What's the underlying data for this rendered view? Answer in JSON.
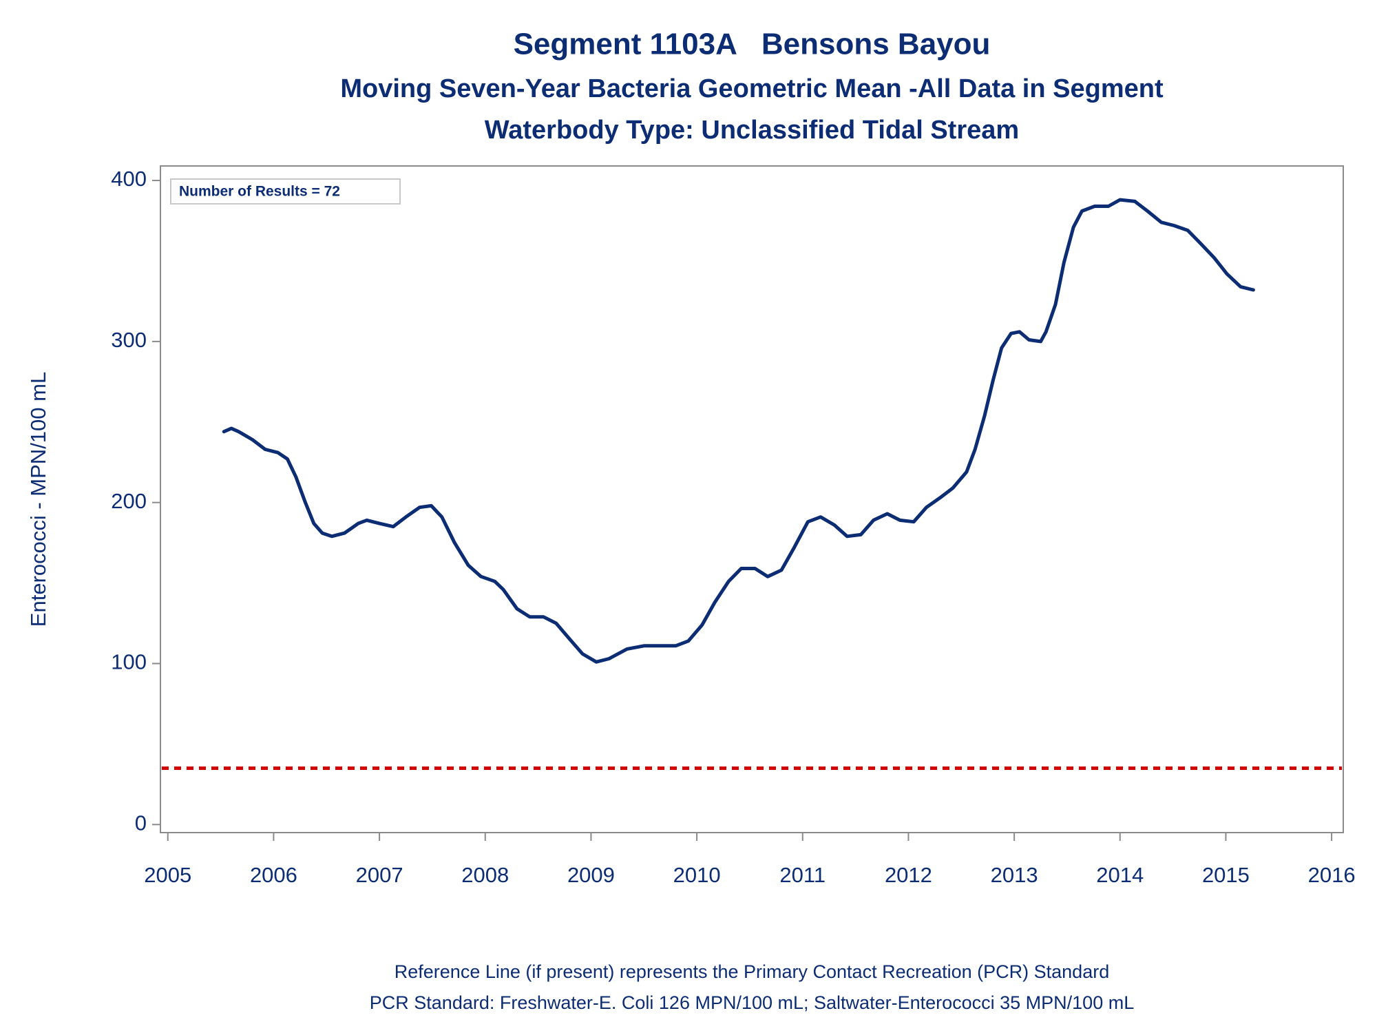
{
  "chart_data": {
    "type": "line",
    "title": "Segment 1103A   Bensons Bayou",
    "subtitle": "Moving Seven-Year Bacteria Geometric Mean -All Data in Segment",
    "subtitle2": "Waterbody Type: Unclassified Tidal Stream",
    "y_label": "Enterococci - MPN/100 mL",
    "annotation": "Number of Results = 72",
    "footnotes": [
      "Reference Line (if present) represents the Primary Contact Recreation (PCR) Standard",
      "PCR Standard: Freshwater-E. Coli 126 MPN/100 mL; Saltwater-Enterococci 35 MPN/100 mL"
    ],
    "xlim": [
      2004.93,
      2016.11
    ],
    "xticks": [
      2005,
      2006,
      2007,
      2008,
      2009,
      2010,
      2011,
      2012,
      2013,
      2014,
      2015,
      2016
    ],
    "ylim": [
      -5,
      409
    ],
    "yticks": [
      0,
      100,
      200,
      300,
      400
    ],
    "reference_line": {
      "value": 35,
      "color": "#d40000"
    },
    "series": [
      {
        "color": "#0c2c73",
        "x": [
          2005.53,
          2005.6,
          2005.67,
          2005.8,
          2005.92,
          2006.04,
          2006.13,
          2006.21,
          2006.3,
          2006.38,
          2006.46,
          2006.55,
          2006.67,
          2006.8,
          2006.88,
          2007.0,
          2007.13,
          2007.25,
          2007.38,
          2007.49,
          2007.59,
          2007.71,
          2007.84,
          2007.96,
          2008.09,
          2008.17,
          2008.3,
          2008.42,
          2008.55,
          2008.67,
          2008.8,
          2008.92,
          2009.05,
          2009.17,
          2009.34,
          2009.5,
          2009.67,
          2009.8,
          2009.92,
          2010.05,
          2010.17,
          2010.3,
          2010.42,
          2010.55,
          2010.67,
          2010.8,
          2010.92,
          2011.05,
          2011.17,
          2011.3,
          2011.42,
          2011.55,
          2011.67,
          2011.8,
          2011.92,
          2012.05,
          2012.17,
          2012.3,
          2012.42,
          2012.55,
          2012.63,
          2012.72,
          2012.8,
          2012.88,
          2012.97,
          2013.05,
          2013.14,
          2013.25,
          2013.3,
          2013.39,
          2013.47,
          2013.56,
          2013.64,
          2013.76,
          2013.89,
          2014.0,
          2014.14,
          2014.26,
          2014.39,
          2014.51,
          2014.64,
          2014.76,
          2014.89,
          2015.01,
          2015.14,
          2015.26
        ],
        "values": [
          244,
          246,
          244,
          239,
          233,
          231,
          227,
          216,
          200,
          187,
          181,
          179,
          181,
          187,
          189,
          187,
          185,
          191,
          197,
          198,
          191,
          175,
          161,
          154,
          151,
          146,
          134,
          129,
          129,
          125,
          115,
          106,
          101,
          103,
          109,
          111,
          111,
          111,
          114,
          124,
          138,
          151,
          159,
          159,
          154,
          158,
          172,
          188,
          191,
          186,
          179,
          180,
          189,
          193,
          189,
          188,
          197,
          203,
          209,
          219,
          233,
          254,
          276,
          296,
          305,
          306,
          301,
          300,
          306,
          323,
          349,
          371,
          381,
          384,
          384,
          388,
          387,
          381,
          374,
          372,
          369,
          361,
          352,
          342,
          334,
          332
        ]
      }
    ]
  }
}
